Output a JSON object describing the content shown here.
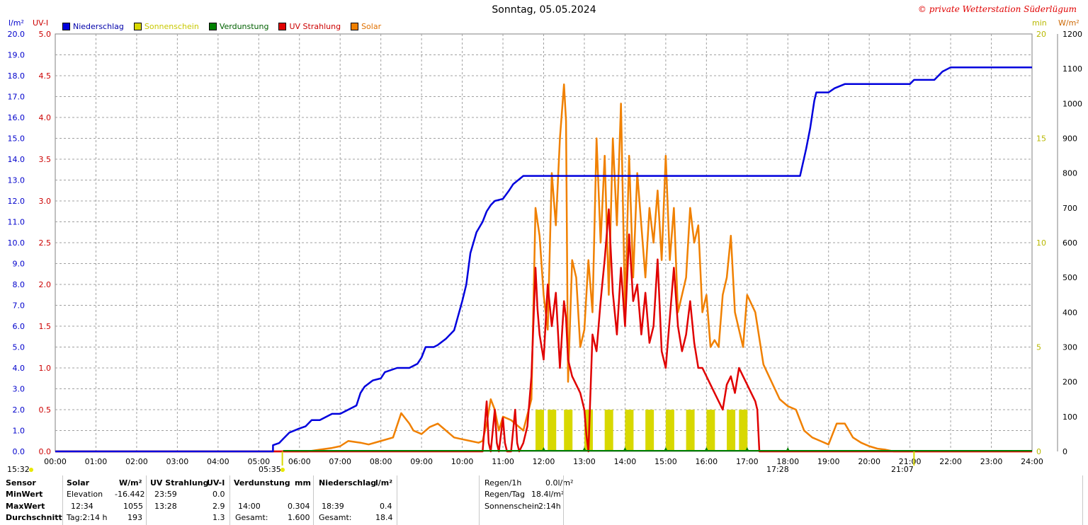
{
  "page": {
    "title": "Sonntag, 05.05.2024",
    "copyright": "© private Wetterstation Süderlügum"
  },
  "legend": [
    {
      "label": "Niederschlag",
      "color": "#0000dd"
    },
    {
      "label": "Sonnenschein",
      "color": "#d8d800"
    },
    {
      "label": "Verdunstung",
      "color": "#008000"
    },
    {
      "label": "UV Strahlung",
      "color": "#e00000"
    },
    {
      "label": "Solar",
      "color": "#f08000"
    }
  ],
  "units": {
    "left1": "l/m²",
    "left2": "UV-I",
    "right1": "min",
    "right2": "W/m²"
  },
  "sun": {
    "sunrise": "05:35",
    "sunset": "21:07",
    "left_time": "15:32",
    "mark_1728": "17:28"
  },
  "stats": {
    "headers": {
      "sensor": "Sensor",
      "solar": "Solar",
      "solar_unit": "W/m²",
      "uv": "UV Strahlung",
      "uv_unit": "UV-I",
      "evap": "Verdunstung",
      "evap_unit": "mm",
      "rain": "Niederschlag",
      "rain_unit": "l/m²"
    },
    "rows": [
      {
        "label": "MinWert",
        "solar_time": "Elevation",
        "solar_val": "-16.442",
        "uv_time": "23:59",
        "uv_val": "0.0",
        "evap_time": "",
        "evap_val": "",
        "rain_time": "",
        "rain_val": ""
      },
      {
        "label": "MaxWert",
        "solar_time": "12:34",
        "solar_val": "1055",
        "uv_time": "13:28",
        "uv_val": "2.9",
        "evap_time": "14:00",
        "evap_val": "0.304",
        "rain_time": "18:39",
        "rain_val": "0.4"
      },
      {
        "label": "Durchschnitt",
        "solar_time": "Tag:2:14 h",
        "solar_val": "193",
        "uv_time": "",
        "uv_val": "1.3",
        "evap_time": "Gesamt:",
        "evap_val": "1.600",
        "rain_time": "Gesamt:",
        "rain_val": "18.4"
      }
    ],
    "extra": [
      {
        "label": "Regen/1h",
        "value": "0.0l/m²"
      },
      {
        "label": "Regen/Tag",
        "value": "18.4l/m²"
      },
      {
        "label": "Sonnenschein",
        "value": "2:14h"
      }
    ]
  },
  "chart_data": {
    "type": "line",
    "x_ticks": [
      "00:00",
      "01:00",
      "02:00",
      "03:00",
      "04:00",
      "05:00",
      "06:00",
      "07:00",
      "08:00",
      "09:00",
      "10:00",
      "11:00",
      "12:00",
      "13:00",
      "14:00",
      "15:00",
      "16:00",
      "17:00",
      "18:00",
      "19:00",
      "20:00",
      "21:00",
      "22:00",
      "23:00",
      "24:00"
    ],
    "xlim": [
      0,
      24
    ],
    "axes": {
      "rain": {
        "ticks": [
          "0.0",
          "1.0",
          "2.0",
          "3.0",
          "4.0",
          "5.0",
          "6.0",
          "7.0",
          "8.0",
          "9.0",
          "10.0",
          "11.0",
          "12.0",
          "13.0",
          "14.0",
          "15.0",
          "16.0",
          "17.0",
          "18.0",
          "19.0",
          "20.0"
        ],
        "ylim": [
          0,
          20
        ],
        "color": "#0000cc"
      },
      "uv": {
        "ticks": [
          "0.0",
          "0.5",
          "1.0",
          "1.5",
          "2.0",
          "2.5",
          "3.0",
          "3.5",
          "4.0",
          "4.5",
          "5.0"
        ],
        "ylim": [
          0,
          5
        ],
        "color": "#cc0000"
      },
      "sun_min": {
        "ticks": [
          "0",
          "5",
          "10",
          "15",
          "20"
        ],
        "ylim": [
          0,
          20
        ],
        "color": "#b8b800"
      },
      "solar": {
        "ticks": [
          "0",
          "100",
          "200",
          "300",
          "400",
          "500",
          "600",
          "700",
          "800",
          "900",
          "1000",
          "1100",
          "1200"
        ],
        "ylim": [
          0,
          1200
        ],
        "color": "#000000"
      }
    },
    "series": [
      {
        "name": "Niederschlag",
        "color": "#0000dd",
        "x": [
          0,
          5.35,
          5.35,
          5.5,
          5.6,
          5.75,
          6.0,
          6.15,
          6.3,
          6.5,
          6.8,
          7.0,
          7.4,
          7.5,
          7.6,
          7.8,
          8.0,
          8.1,
          8.4,
          8.5,
          8.7,
          8.9,
          9.0,
          9.1,
          9.3,
          9.4,
          9.6,
          9.8,
          10.0,
          10.1,
          10.2,
          10.35,
          10.5,
          10.6,
          10.7,
          10.8,
          11.0,
          11.15,
          11.25,
          11.5,
          12.0,
          13.0,
          14.0,
          15.0,
          16.0,
          17.0,
          18.0,
          18.3,
          18.45,
          18.55,
          18.65,
          18.7,
          19.0,
          19.15,
          19.4,
          20.0,
          20.5,
          21.0,
          21.1,
          21.5,
          21.6,
          21.8,
          22.0,
          22.5,
          23.0,
          24.0
        ],
        "values": [
          0,
          0,
          0.3,
          0.4,
          0.6,
          0.9,
          1.1,
          1.2,
          1.5,
          1.5,
          1.8,
          1.8,
          2.2,
          2.8,
          3.1,
          3.4,
          3.5,
          3.8,
          4.0,
          4.0,
          4.0,
          4.2,
          4.5,
          5.0,
          5.0,
          5.1,
          5.4,
          5.8,
          7.2,
          8.0,
          9.5,
          10.5,
          11.0,
          11.5,
          11.8,
          12.0,
          12.1,
          12.5,
          12.8,
          13.2,
          13.2,
          13.2,
          13.2,
          13.2,
          13.2,
          13.2,
          13.2,
          13.2,
          14.5,
          15.5,
          16.8,
          17.2,
          17.2,
          17.4,
          17.6,
          17.6,
          17.6,
          17.6,
          17.8,
          17.8,
          17.8,
          18.2,
          18.4,
          18.4,
          18.4,
          18.4
        ]
      },
      {
        "name": "UV Strahlung",
        "color": "#e00000",
        "x": [
          0,
          10.5,
          10.6,
          10.65,
          10.7,
          10.8,
          10.85,
          10.9,
          11.0,
          11.05,
          11.1,
          11.2,
          11.3,
          11.35,
          11.4,
          11.5,
          11.6,
          11.7,
          11.8,
          11.85,
          11.9,
          12.0,
          12.1,
          12.2,
          12.3,
          12.4,
          12.5,
          12.55,
          12.6,
          12.7,
          12.8,
          12.9,
          13.0,
          13.05,
          13.1,
          13.2,
          13.3,
          13.4,
          13.5,
          13.6,
          13.7,
          13.8,
          13.9,
          14.0,
          14.1,
          14.2,
          14.3,
          14.4,
          14.5,
          14.6,
          14.7,
          14.8,
          14.9,
          15.0,
          15.1,
          15.2,
          15.3,
          15.4,
          15.5,
          15.6,
          15.7,
          15.8,
          15.9,
          16.0,
          16.2,
          16.3,
          16.4,
          16.5,
          16.6,
          16.7,
          16.8,
          16.9,
          17.0,
          17.1,
          17.2,
          17.25,
          17.3,
          24.0
        ],
        "values": [
          0,
          0,
          0.6,
          0.1,
          0,
          0.5,
          0.1,
          0,
          0.4,
          0.1,
          0,
          0,
          0.5,
          0.1,
          0,
          0.1,
          0.3,
          0.9,
          2.2,
          1.7,
          1.4,
          1.1,
          2.0,
          1.5,
          1.9,
          1.0,
          1.8,
          1.6,
          1.1,
          0.9,
          0.8,
          0.7,
          0.5,
          0.2,
          0,
          1.4,
          1.2,
          1.8,
          2.3,
          2.9,
          1.9,
          1.4,
          2.2,
          1.5,
          2.6,
          1.8,
          2.0,
          1.4,
          1.9,
          1.3,
          1.5,
          2.3,
          1.2,
          1.0,
          1.6,
          2.2,
          1.5,
          1.2,
          1.4,
          1.8,
          1.3,
          1.0,
          1.0,
          0.9,
          0.7,
          0.6,
          0.5,
          0.8,
          0.9,
          0.7,
          1.0,
          0.9,
          0.8,
          0.7,
          0.6,
          0.5,
          0,
          0
        ]
      },
      {
        "name": "Solar",
        "color": "#f08000",
        "x": [
          0,
          6.2,
          6.5,
          6.8,
          7.0,
          7.2,
          7.5,
          7.7,
          8.0,
          8.3,
          8.5,
          8.7,
          8.8,
          9.0,
          9.2,
          9.4,
          9.6,
          9.8,
          10.0,
          10.2,
          10.4,
          10.5,
          10.6,
          10.7,
          10.8,
          10.9,
          11.0,
          11.2,
          11.4,
          11.5,
          11.7,
          11.8,
          11.85,
          11.9,
          12.0,
          12.1,
          12.2,
          12.3,
          12.4,
          12.5,
          12.55,
          12.6,
          12.7,
          12.8,
          12.9,
          13.0,
          13.1,
          13.2,
          13.3,
          13.4,
          13.5,
          13.6,
          13.7,
          13.8,
          13.9,
          14.0,
          14.1,
          14.2,
          14.3,
          14.4,
          14.5,
          14.6,
          14.7,
          14.8,
          14.9,
          15.0,
          15.1,
          15.2,
          15.3,
          15.4,
          15.5,
          15.6,
          15.7,
          15.8,
          15.9,
          16.0,
          16.1,
          16.2,
          16.3,
          16.4,
          16.5,
          16.6,
          16.7,
          16.8,
          16.9,
          17.0,
          17.2,
          17.4,
          17.6,
          17.8,
          18.0,
          18.2,
          18.4,
          18.6,
          18.8,
          19.0,
          19.2,
          19.4,
          19.6,
          19.8,
          20.0,
          20.2,
          20.4,
          20.6,
          24.0
        ],
        "values": [
          0,
          0,
          5,
          10,
          15,
          30,
          25,
          20,
          30,
          40,
          110,
          80,
          60,
          50,
          70,
          80,
          60,
          40,
          35,
          30,
          25,
          30,
          80,
          150,
          120,
          60,
          100,
          90,
          70,
          60,
          150,
          700,
          660,
          620,
          450,
          350,
          800,
          650,
          900,
          1055,
          950,
          200,
          550,
          500,
          300,
          350,
          550,
          400,
          900,
          600,
          850,
          450,
          900,
          650,
          1000,
          400,
          850,
          500,
          800,
          650,
          500,
          700,
          600,
          750,
          550,
          850,
          550,
          700,
          400,
          450,
          500,
          700,
          600,
          650,
          400,
          450,
          300,
          320,
          300,
          450,
          500,
          620,
          400,
          350,
          300,
          450,
          400,
          250,
          200,
          150,
          130,
          120,
          60,
          40,
          30,
          20,
          80,
          80,
          40,
          25,
          15,
          8,
          5,
          0,
          0
        ]
      },
      {
        "name": "Sonnenschein",
        "color": "#d8d800",
        "x": [
          11.8,
          12.1,
          12.5,
          13.0,
          13.5,
          14.0,
          14.5,
          15.0,
          15.5,
          16.0,
          16.5,
          16.8
        ],
        "values": [
          2,
          2,
          2,
          2,
          2,
          2,
          2,
          2,
          2,
          2,
          2,
          2
        ]
      },
      {
        "name": "Verdunstung",
        "color": "#008000",
        "x": [
          12.0,
          13.0,
          14.0,
          15.0,
          16.0,
          17.0,
          18.0
        ],
        "values": [
          0.1,
          0.1,
          0.3,
          0.2,
          0.2,
          0.1,
          0.05
        ]
      }
    ]
  }
}
